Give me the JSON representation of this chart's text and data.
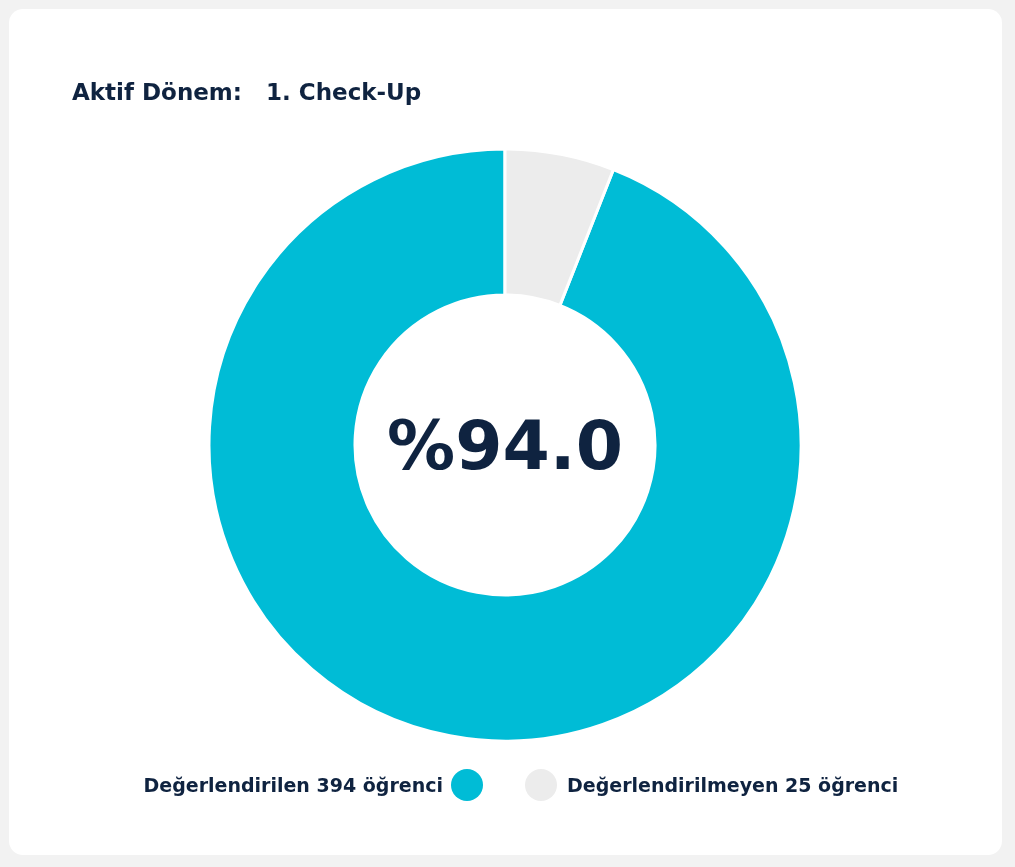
{
  "chart_data": {
    "type": "donut",
    "title": "Aktif Dönem:   1. Check-Up",
    "categories": [
      "Değerlendirilen 394 öğrenci",
      "Değerlendirilmeyen 25 öğrenci"
    ],
    "values": [
      394,
      25
    ],
    "colors": [
      "#00bcd6",
      "#ececec"
    ],
    "annotations": [
      "%94.0"
    ],
    "legend": "bottom"
  }
}
